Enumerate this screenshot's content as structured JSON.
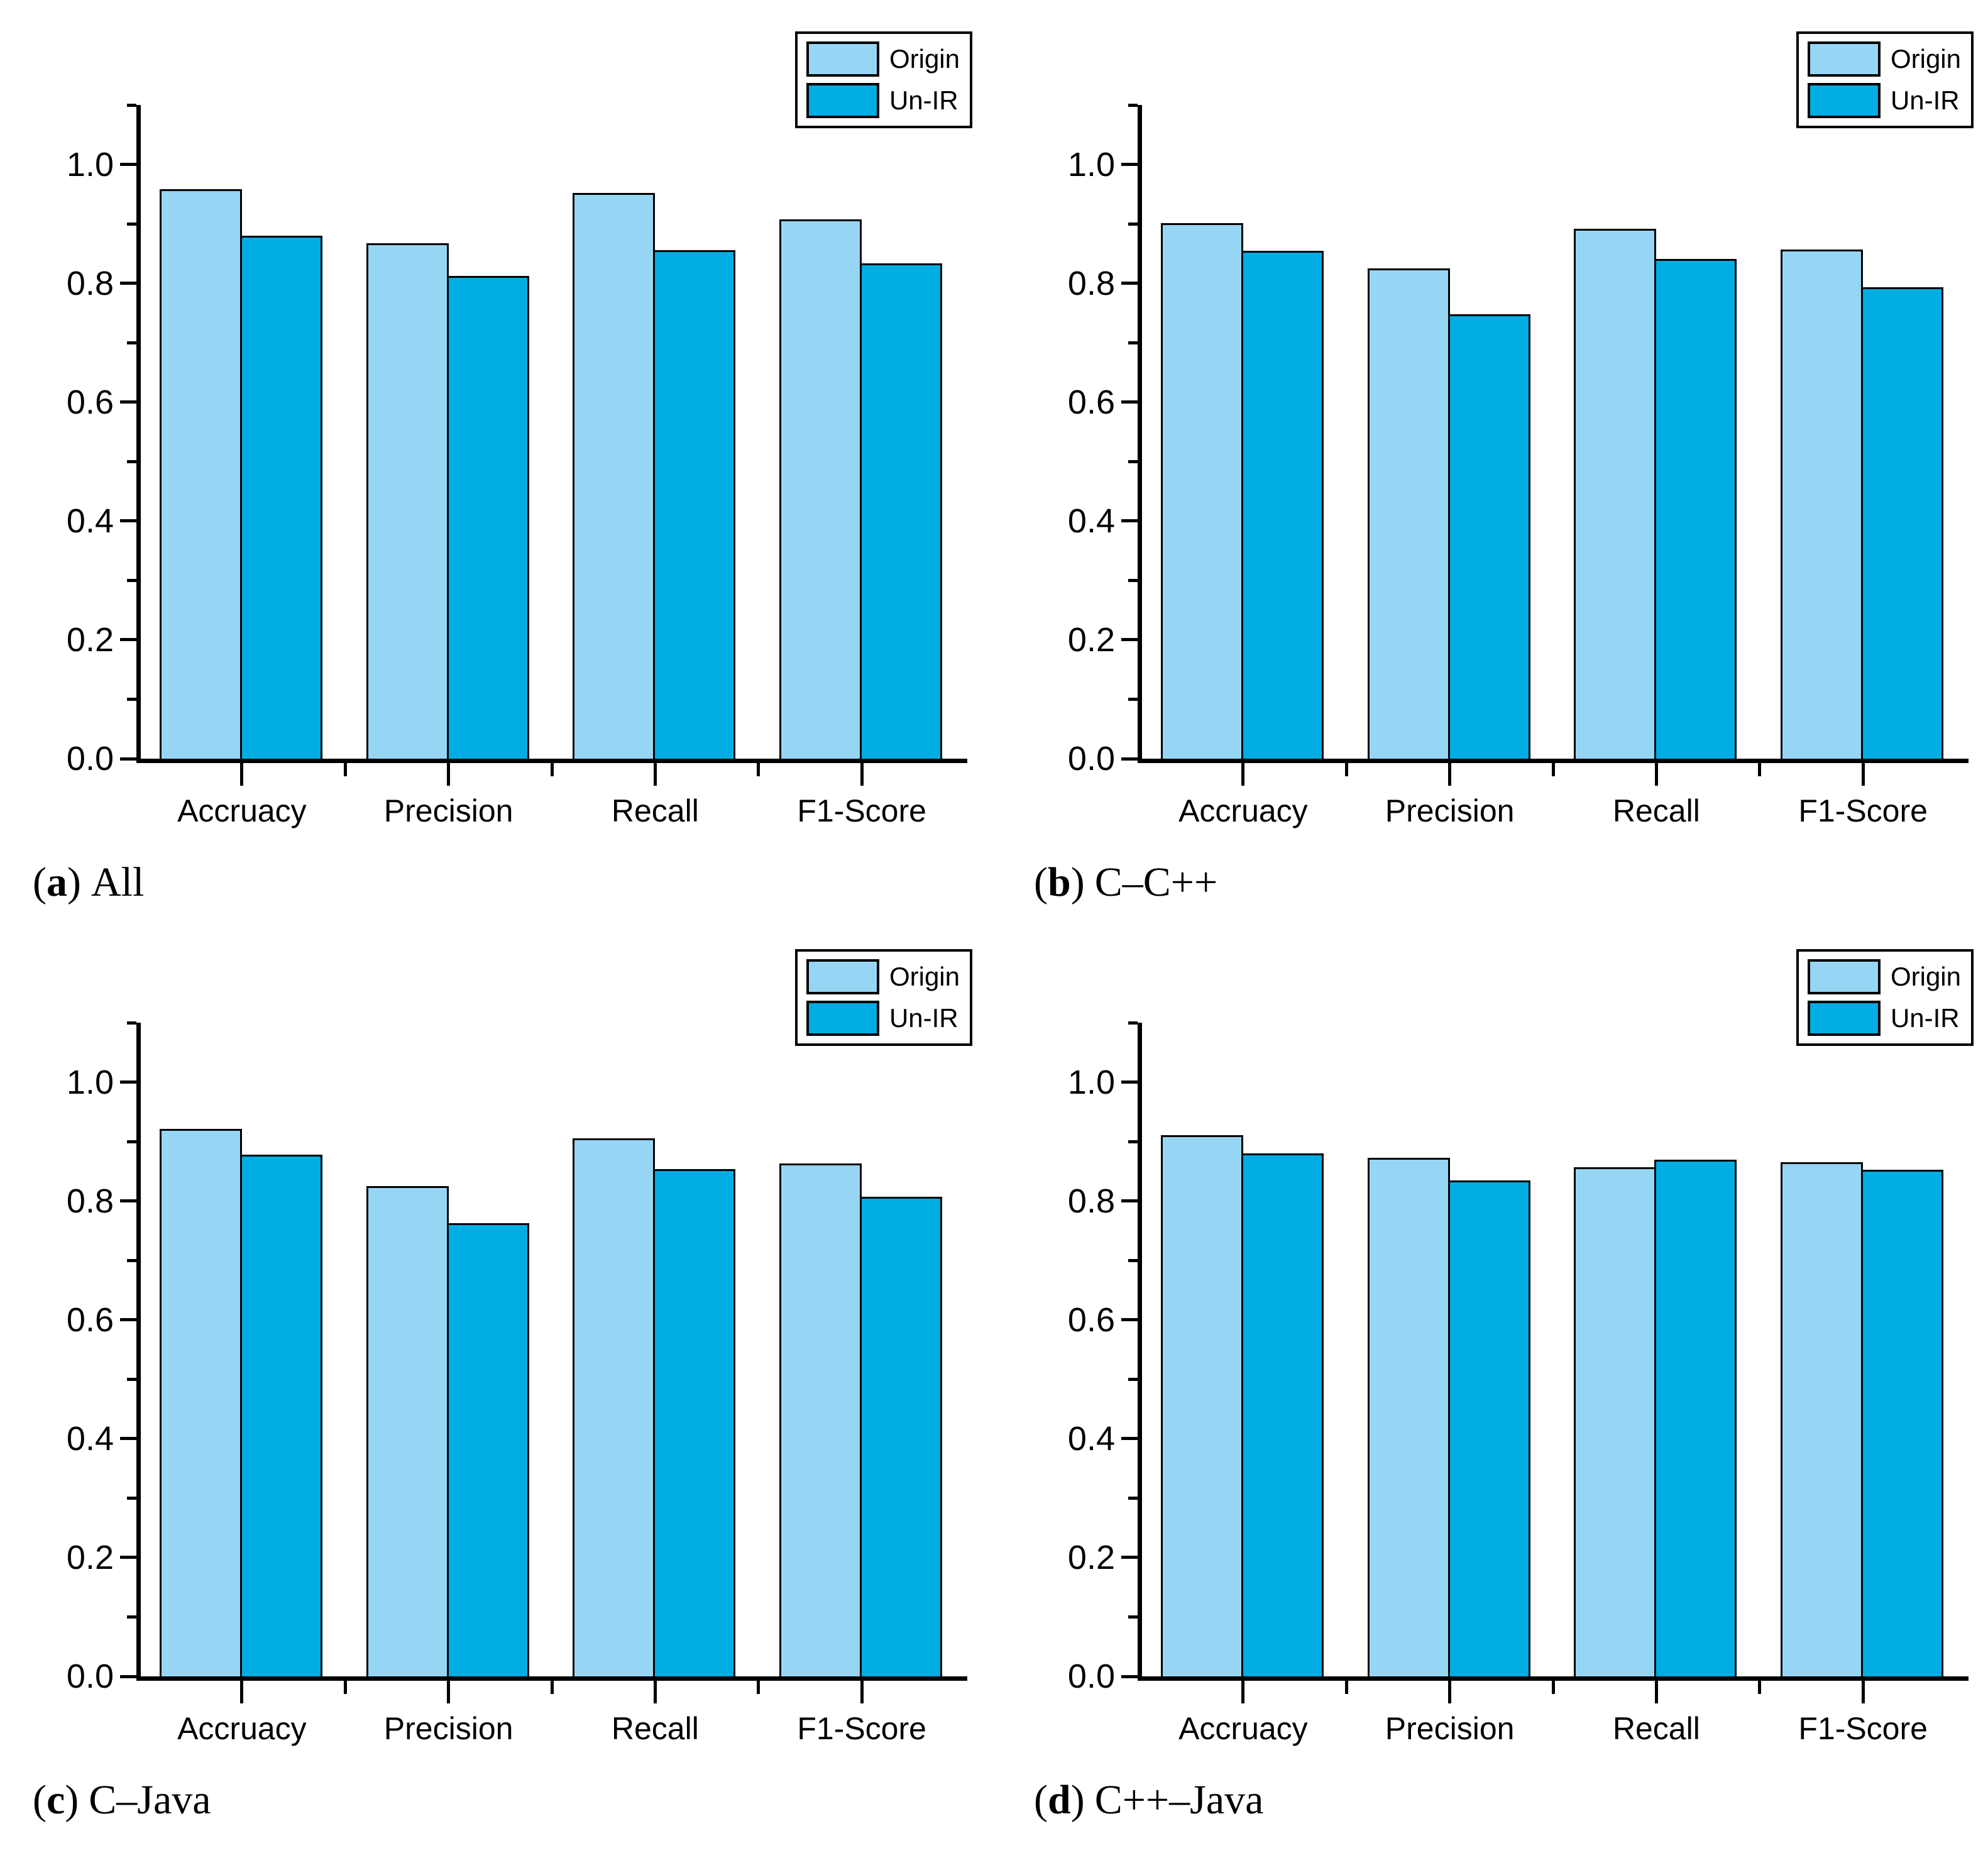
{
  "figure": {
    "caption_open": "(",
    "caption_close": ")",
    "series_colors": {
      "origin": "#97d5f4",
      "un_ir": "#00ade3"
    },
    "outline_color": "#000000",
    "background": "#ffffff",
    "legend_items": [
      "Origin",
      "Un-IR"
    ]
  },
  "chart_data": [
    {
      "id": "a",
      "type": "bar",
      "caption_letter": "a",
      "caption_text": "All",
      "categories": [
        "Accruacy",
        "Precision",
        "Recall",
        "F1-Score"
      ],
      "series": [
        {
          "name": "Origin",
          "color": "#97d5f4",
          "values": [
            0.958,
            0.867,
            0.952,
            0.907
          ]
        },
        {
          "name": "Un-IR",
          "color": "#00ade3",
          "values": [
            0.88,
            0.812,
            0.856,
            0.833
          ]
        }
      ],
      "ylim": [
        0,
        1.1
      ],
      "yticks_major": [
        0.0,
        0.2,
        0.4,
        0.6,
        0.8,
        1.0
      ],
      "ytick_labels": [
        "0.0",
        "0.2",
        "0.4",
        "0.6",
        "0.8",
        "1.0"
      ],
      "yticks_minor": [
        0.1,
        0.3,
        0.5,
        0.7,
        0.9,
        1.1
      ],
      "grid": false,
      "legend_position": "top-right"
    },
    {
      "id": "b",
      "type": "bar",
      "caption_letter": "b",
      "caption_text": "C–C++",
      "categories": [
        "Accruacy",
        "Precision",
        "Recall",
        "F1-Score"
      ],
      "series": [
        {
          "name": "Origin",
          "color": "#97d5f4",
          "values": [
            0.901,
            0.825,
            0.892,
            0.857
          ]
        },
        {
          "name": "Un-IR",
          "color": "#00ade3",
          "values": [
            0.855,
            0.748,
            0.841,
            0.793
          ]
        }
      ],
      "ylim": [
        0,
        1.1
      ],
      "yticks_major": [
        0.0,
        0.2,
        0.4,
        0.6,
        0.8,
        1.0
      ],
      "ytick_labels": [
        "0.0",
        "0.2",
        "0.4",
        "0.6",
        "0.8",
        "1.0"
      ],
      "yticks_minor": [
        0.1,
        0.3,
        0.5,
        0.7,
        0.9,
        1.1
      ],
      "grid": false,
      "legend_position": "top-right"
    },
    {
      "id": "c",
      "type": "bar",
      "caption_letter": "c",
      "caption_text": "C–Java",
      "categories": [
        "Accruacy",
        "Precision",
        "Recall",
        "F1-Score"
      ],
      "series": [
        {
          "name": "Origin",
          "color": "#97d5f4",
          "values": [
            0.921,
            0.825,
            0.905,
            0.863
          ]
        },
        {
          "name": "Un-IR",
          "color": "#00ade3",
          "values": [
            0.878,
            0.763,
            0.854,
            0.807
          ]
        }
      ],
      "ylim": [
        0,
        1.1
      ],
      "yticks_major": [
        0.0,
        0.2,
        0.4,
        0.6,
        0.8,
        1.0
      ],
      "ytick_labels": [
        "0.0",
        "0.2",
        "0.4",
        "0.6",
        "0.8",
        "1.0"
      ],
      "yticks_minor": [
        0.1,
        0.3,
        0.5,
        0.7,
        0.9,
        1.1
      ],
      "grid": false,
      "legend_position": "top-right"
    },
    {
      "id": "d",
      "type": "bar",
      "caption_letter": "d",
      "caption_text": "C++–Java",
      "categories": [
        "Accruacy",
        "Precision",
        "Recall",
        "F1-Score"
      ],
      "series": [
        {
          "name": "Origin",
          "color": "#97d5f4",
          "values": [
            0.911,
            0.873,
            0.857,
            0.865
          ]
        },
        {
          "name": "Un-IR",
          "color": "#00ade3",
          "values": [
            0.88,
            0.834,
            0.869,
            0.853
          ]
        }
      ],
      "ylim": [
        0,
        1.1
      ],
      "yticks_major": [
        0.0,
        0.2,
        0.4,
        0.6,
        0.8,
        1.0
      ],
      "ytick_labels": [
        "0.0",
        "0.2",
        "0.4",
        "0.6",
        "0.8",
        "1.0"
      ],
      "yticks_minor": [
        0.1,
        0.3,
        0.5,
        0.7,
        0.9,
        1.1
      ],
      "grid": false,
      "legend_position": "top-right"
    }
  ]
}
